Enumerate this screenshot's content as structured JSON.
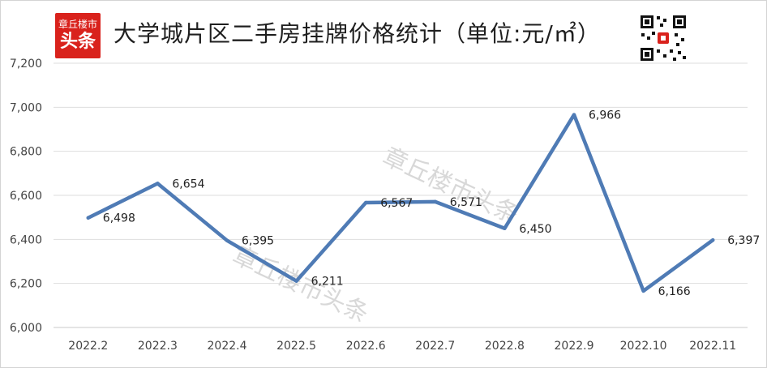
{
  "brand": {
    "line1": "章丘楼市",
    "line2": "头条",
    "color": "#d9221c"
  },
  "title": "大学城片区二手房挂牌价格统计（单位:元/㎡）",
  "qr_icon": "qr-code-icon",
  "watermark": "章丘楼市头条",
  "chart_data": {
    "type": "line",
    "title": "大学城片区二手房挂牌价格统计（单位:元/㎡）",
    "categories": [
      "2022.2",
      "2022.3",
      "2022.4",
      "2022.5",
      "2022.6",
      "2022.7",
      "2022.8",
      "2022.9",
      "2022.10",
      "2022.11"
    ],
    "series": [
      {
        "values": [
          6498,
          6654,
          6395,
          6211,
          6567,
          6571,
          6450,
          6966,
          6166,
          6397
        ],
        "labels": [
          "6,498",
          "6,654",
          "6,395",
          "6,211",
          "6,567",
          "6,571",
          "6,450",
          "6,966",
          "6,166",
          "6,397"
        ],
        "color": "#4f7bb5"
      }
    ],
    "ylim": [
      6000,
      7200
    ],
    "yticks": [
      6000,
      6200,
      6400,
      6600,
      6800,
      7000,
      7200
    ],
    "ytick_labels": [
      "6,000",
      "6,200",
      "6,400",
      "6,600",
      "6,800",
      "7,000",
      "7,200"
    ],
    "grid": true,
    "legend": "none"
  }
}
